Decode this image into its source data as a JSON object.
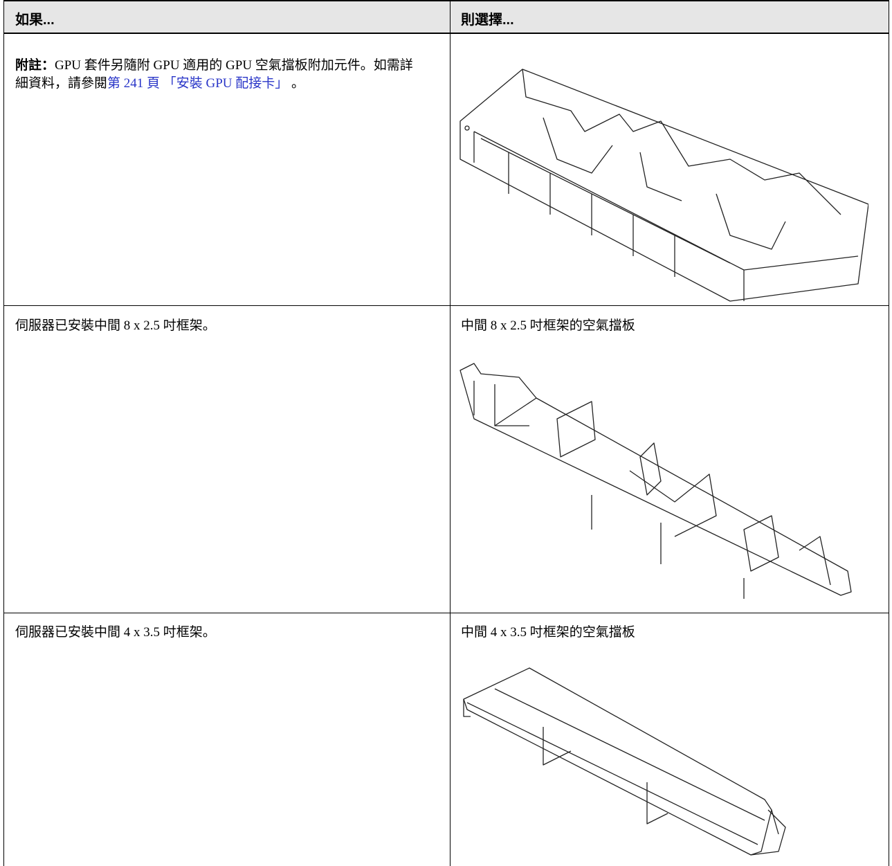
{
  "table": {
    "headers": [
      "如果...",
      "則選擇..."
    ],
    "rows": [
      {
        "condition": {
          "note_label": "附註：",
          "note_text": "GPU 套件另隨附 GPU 適用的 GPU 空氣擋板附加元件。如需詳細資料，請參閱",
          "link": "第 241 頁 「安裝 GPU 配接卡」",
          "note_end": " 。"
        }
      },
      {
        "condition": "伺服器已安裝中間 8 x 2.5 吋框架。",
        "choice": "中間 8 x 2.5 吋框架的空氣擋板"
      },
      {
        "condition": "伺服器已安裝中間 4 x 3.5 吋框架。",
        "choice": "中間 4 x 3.5 吋框架的空氣擋板"
      }
    ]
  }
}
